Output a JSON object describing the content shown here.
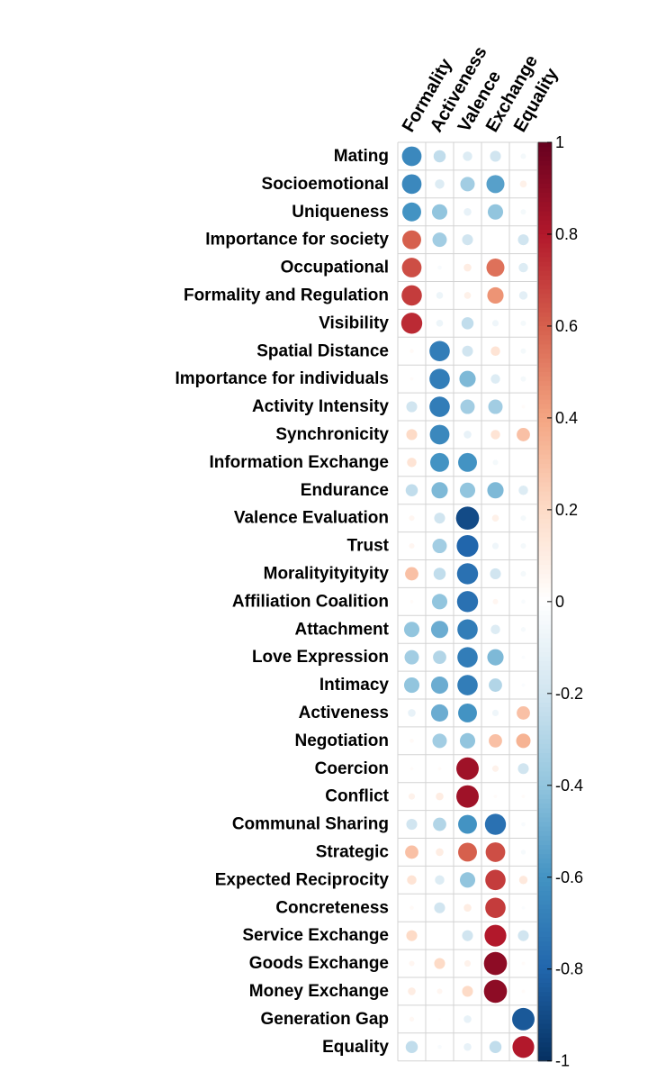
{
  "chart_data": {
    "type": "heatmap",
    "columns": [
      "Formality",
      "Activeness",
      "Valence",
      "Exchange",
      "Equality"
    ],
    "rows": [
      "Mating",
      "Socioemotional",
      "Uniqueness",
      "Importance for society",
      "Occupational",
      "Formality and Regulation",
      "Visibility",
      "Spatial Distance",
      "Importance for individuals",
      "Activity Intensity",
      "Synchronicity",
      "Information Exchange",
      "Endurance",
      "Valence Evaluation",
      "Trust",
      "Moralityityityity",
      "Affiliation Coalition",
      "Attachment",
      "Love Expression",
      "Intimacy",
      "Activeness",
      "Negotiation",
      "Coercion",
      "Conflict",
      "Communal Sharing",
      "Strategic",
      "Expected Reciprocity",
      "Concreteness",
      "Service Exchange",
      "Goods Exchange",
      "Money Exchange",
      "Generation Gap",
      "Equality"
    ],
    "values": [
      [
        -0.65,
        -0.25,
        -0.15,
        -0.2,
        -0.05
      ],
      [
        -0.65,
        -0.15,
        -0.35,
        -0.55,
        0.08
      ],
      [
        -0.6,
        -0.4,
        -0.1,
        -0.4,
        -0.05
      ],
      [
        0.6,
        -0.35,
        -0.2,
        0.0,
        -0.2
      ],
      [
        0.65,
        -0.03,
        0.1,
        0.55,
        -0.15
      ],
      [
        0.7,
        -0.08,
        0.08,
        0.45,
        -0.12
      ],
      [
        0.75,
        -0.08,
        -0.25,
        -0.07,
        -0.05
      ],
      [
        0.03,
        -0.7,
        -0.2,
        0.15,
        -0.05
      ],
      [
        0.02,
        -0.7,
        -0.45,
        -0.15,
        -0.05
      ],
      [
        -0.2,
        -0.7,
        -0.35,
        -0.35,
        0.02
      ],
      [
        0.2,
        -0.65,
        -0.1,
        0.15,
        0.3
      ],
      [
        0.15,
        -0.6,
        -0.6,
        -0.05,
        0.0
      ],
      [
        -0.25,
        -0.45,
        -0.4,
        -0.45,
        -0.15
      ],
      [
        0.05,
        -0.2,
        -0.9,
        0.08,
        -0.05
      ],
      [
        0.05,
        -0.35,
        -0.8,
        -0.07,
        -0.05
      ],
      [
        0.3,
        -0.25,
        -0.75,
        -0.2,
        -0.05
      ],
      [
        0.02,
        -0.4,
        -0.75,
        0.05,
        -0.03
      ],
      [
        -0.4,
        -0.5,
        -0.7,
        -0.15,
        -0.04
      ],
      [
        -0.35,
        -0.3,
        -0.7,
        -0.45,
        -0.02
      ],
      [
        -0.4,
        -0.5,
        -0.7,
        -0.3,
        -0.02
      ],
      [
        -0.1,
        -0.5,
        -0.6,
        -0.07,
        0.3
      ],
      [
        0.03,
        -0.35,
        -0.4,
        0.3,
        0.35
      ],
      [
        0.02,
        0.02,
        0.85,
        0.07,
        -0.2
      ],
      [
        0.07,
        0.1,
        0.85,
        0.02,
        0.02
      ],
      [
        -0.2,
        -0.3,
        -0.6,
        -0.75,
        -0.03
      ],
      [
        0.3,
        0.1,
        0.6,
        0.65,
        -0.04
      ],
      [
        0.15,
        -0.15,
        -0.4,
        0.7,
        0.12
      ],
      [
        0.03,
        -0.2,
        0.1,
        0.7,
        -0.02
      ],
      [
        0.2,
        0.0,
        -0.2,
        0.8,
        -0.2
      ],
      [
        0.05,
        0.2,
        0.07,
        0.9,
        0.02
      ],
      [
        0.1,
        0.05,
        0.2,
        0.9,
        0.02
      ],
      [
        0.04,
        0.01,
        -0.1,
        0.0,
        -0.85
      ],
      [
        -0.25,
        -0.03,
        -0.1,
        -0.25,
        0.8
      ]
    ],
    "colorbar": {
      "range": [
        -1,
        1
      ],
      "tick_labels": [
        "1",
        "0.8",
        "0.6",
        "0.4",
        "0.2",
        "0",
        "-0.2",
        "-0.4",
        "-0.6",
        "-0.8",
        "-1"
      ],
      "tick_values": [
        1,
        0.8,
        0.6,
        0.4,
        0.2,
        0,
        -0.2,
        -0.4,
        -0.6,
        -0.8,
        -1
      ],
      "palette": [
        "#053061",
        "#2166AC",
        "#4393C3",
        "#92C5DE",
        "#D1E5F0",
        "#FFFFFF",
        "#FDDBC7",
        "#F4A582",
        "#D6604D",
        "#B2182B",
        "#67001F"
      ]
    },
    "glyph": "circle",
    "grid": true,
    "legend_placement": "right"
  }
}
